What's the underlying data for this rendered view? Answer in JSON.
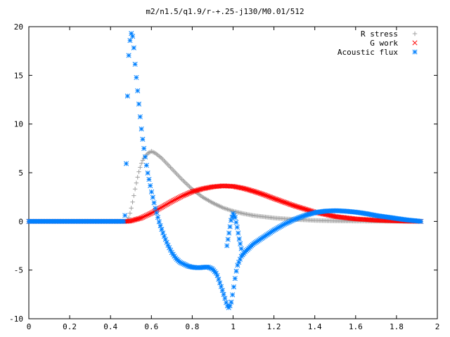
{
  "chart_data": {
    "type": "scatter",
    "title": "m2/n1.5/q1.9/r-+.25-j130/M0.01/512",
    "xlabel": "",
    "ylabel": "",
    "xlim": [
      0,
      2
    ],
    "ylim": [
      -10,
      20
    ],
    "xticks": [
      "0",
      "0.2",
      "0.4",
      "0.6",
      "0.8",
      "1",
      "1.2",
      "1.4",
      "1.6",
      "1.8",
      "2"
    ],
    "yticks": [
      "-10",
      "-5",
      "0",
      "5",
      "10",
      "15",
      "20"
    ],
    "grid": false,
    "legend_position": "top-right",
    "series": [
      {
        "name": "R stress",
        "marker": "plus",
        "color": "#a0a0a0",
        "x": [
          0.0,
          0.48,
          0.49,
          0.5,
          0.51,
          0.52,
          0.53,
          0.54,
          0.55,
          0.56,
          0.58,
          0.6,
          0.62,
          0.65,
          0.7,
          0.75,
          0.8,
          0.85,
          0.9,
          0.95,
          1.0,
          1.05,
          1.1,
          1.2,
          1.3,
          1.4,
          1.5,
          1.6,
          1.7,
          1.8,
          1.9,
          1.92
        ],
        "y": [
          0.0,
          0.0,
          0.4,
          1.2,
          2.2,
          3.3,
          4.3,
          5.2,
          5.9,
          6.4,
          6.95,
          7.2,
          7.0,
          6.5,
          5.4,
          4.3,
          3.3,
          2.5,
          1.9,
          1.4,
          1.05,
          0.8,
          0.6,
          0.35,
          0.2,
          0.1,
          0.05,
          0.03,
          0.02,
          0.01,
          0.0,
          0.0
        ]
      },
      {
        "name": "G work",
        "marker": "cross",
        "color": "#ff0000",
        "x": [
          0.0,
          0.48,
          0.5,
          0.55,
          0.6,
          0.65,
          0.7,
          0.75,
          0.8,
          0.85,
          0.9,
          0.95,
          1.0,
          1.05,
          1.1,
          1.15,
          1.2,
          1.3,
          1.4,
          1.5,
          1.6,
          1.7,
          1.8,
          1.9,
          1.92
        ],
        "y": [
          0.0,
          0.0,
          0.05,
          0.35,
          0.85,
          1.45,
          2.05,
          2.6,
          3.05,
          3.35,
          3.55,
          3.65,
          3.6,
          3.4,
          3.1,
          2.75,
          2.35,
          1.6,
          0.95,
          0.5,
          0.25,
          0.12,
          0.05,
          0.01,
          0.0
        ]
      },
      {
        "name": "Acoustic flux",
        "marker": "star",
        "color": "#0080ff",
        "x": [
          0.0,
          0.47,
          0.48,
          0.485,
          0.49,
          0.495,
          0.5,
          0.505,
          0.51,
          0.515,
          0.52,
          0.53,
          0.54,
          0.55,
          0.56,
          0.58,
          0.6,
          0.62,
          0.64,
          0.66,
          0.68,
          0.7,
          0.72,
          0.74,
          0.76,
          0.78,
          0.8,
          0.82,
          0.84,
          0.86,
          0.88,
          0.9,
          0.92,
          0.94,
          0.96,
          0.97,
          0.98,
          0.99,
          1.0,
          1.01,
          1.02,
          1.04,
          1.06,
          1.08,
          1.1,
          1.15,
          1.2,
          1.25,
          1.3,
          1.35,
          1.4,
          1.45,
          1.5,
          1.55,
          1.6,
          1.65,
          1.7,
          1.75,
          1.8,
          1.85,
          1.9,
          1.92
        ],
        "y": [
          0.0,
          0.0,
          8.6,
          15.5,
          17.3,
          18.5,
          19.3,
          19.3,
          18.8,
          17.6,
          16.2,
          14.0,
          11.8,
          9.7,
          8.0,
          5.2,
          3.1,
          1.3,
          -0.2,
          -1.4,
          -2.4,
          -3.2,
          -3.8,
          -4.2,
          -4.4,
          -4.6,
          -4.7,
          -4.75,
          -4.75,
          -4.7,
          -4.7,
          -4.9,
          -5.4,
          -6.6,
          -7.9,
          -8.6,
          -8.9,
          -8.4,
          -7.2,
          -5.8,
          -4.6,
          -3.6,
          -3.1,
          -2.7,
          -2.3,
          -1.6,
          -0.9,
          -0.3,
          0.2,
          0.6,
          0.9,
          1.05,
          1.1,
          1.05,
          0.95,
          0.8,
          0.6,
          0.45,
          0.3,
          0.15,
          0.05,
          0.0
        ]
      },
      {
        "name": "",
        "note_hidden": true,
        "marker": "star",
        "color": "#0080ff",
        "x": [
          0.97,
          0.98,
          0.99,
          1.0,
          1.01,
          1.02,
          1.03,
          1.04
        ],
        "y": [
          -2.5,
          -1.2,
          0.1,
          0.8,
          0.4,
          -0.6,
          -1.8,
          -2.8
        ]
      }
    ]
  }
}
